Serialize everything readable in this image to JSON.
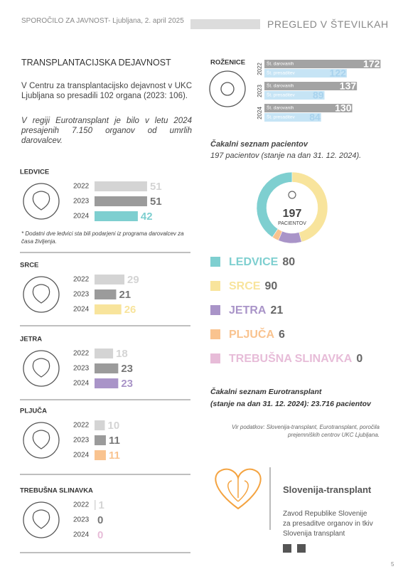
{
  "header": {
    "left": "SPOROČILO ZA JAVNOST- Ljubljana, 2. april 2025",
    "right": "PREGLED V ŠTEVILKAH"
  },
  "intro": {
    "title": "TRANSPLANTACIJSKA DEJAVNOST",
    "p1": "V Centru za transplantacijsko dejavnost v UKC Ljubljana so presadili 102 organa (2023: 106).",
    "p2": "V regiji Eurotransplant je bilo v letu 2024 presajenih 7.150 organov od umrlih darovalcev."
  },
  "organs": [
    {
      "name": "LEDVICE",
      "years": [
        "2022",
        "2023",
        "2024"
      ],
      "values": [
        51,
        51,
        42
      ],
      "colors": [
        "#d4d4d4",
        "#9b9b9b",
        "#7ecfd0"
      ],
      "note": "* Dodatni dve ledvici sta bili podarjeni iz programa darovalcev za časa življenja."
    },
    {
      "name": "SRCE",
      "years": [
        "2022",
        "2023",
        "2024"
      ],
      "values": [
        29,
        21,
        26
      ],
      "colors": [
        "#d4d4d4",
        "#9b9b9b",
        "#f8e49c"
      ]
    },
    {
      "name": "JETRA",
      "years": [
        "2022",
        "2023",
        "2024"
      ],
      "values": [
        18,
        23,
        23
      ],
      "colors": [
        "#d4d4d4",
        "#9b9b9b",
        "#a994c8"
      ]
    },
    {
      "name": "PLJUČA",
      "years": [
        "2022",
        "2023",
        "2024"
      ],
      "values": [
        10,
        11,
        11
      ],
      "colors": [
        "#d4d4d4",
        "#9b9b9b",
        "#f9c38f"
      ]
    },
    {
      "name": "TREBUŠNA SLINAVKA",
      "years": [
        "2022",
        "2023",
        "2024"
      ],
      "values": [
        1,
        0,
        0
      ],
      "colors": [
        "#d4d4d4",
        "#9b9b9b",
        "#e7bcd8"
      ]
    }
  ],
  "corneas": {
    "title": "ROŽENICE",
    "donated_label": "Št. darovanih",
    "transplanted_label": "Št. presaditev",
    "colors": [
      "#a3a3a3",
      "#c6e4f5"
    ],
    "rows": [
      {
        "year": "2022",
        "donated": 172,
        "transplanted": 122
      },
      {
        "year": "2023",
        "donated": 137,
        "transplanted": 89
      },
      {
        "year": "2024",
        "donated": 130,
        "transplanted": 84
      }
    ]
  },
  "waitlist": {
    "title": "Čakalni seznam pacientov",
    "subtitle": "197 pacientov (stanje na dan 31. 12. 2024).",
    "total": 197,
    "total_label": "PACIENTOV",
    "items": [
      {
        "name": "LEDVICE",
        "value": 80,
        "color": "#7ecfd0"
      },
      {
        "name": "SRCE",
        "value": 90,
        "color": "#f8e49c"
      },
      {
        "name": "JETRA",
        "value": 21,
        "color": "#a994c8"
      },
      {
        "name": "PLJUČA",
        "value": 6,
        "color": "#f9c38f"
      },
      {
        "name": "TREBUŠNA SLINAVKA",
        "value": 0,
        "color": "#e7bcd8"
      }
    ]
  },
  "eurotransplant": {
    "line1": "Čakalni seznam Eurotransplant",
    "line2": "(stanje na dan 31. 12. 2024): 23.716 pacientov"
  },
  "source": {
    "line1": "Vir podatkov: Slovenija-transplant, Eurotransplant, poročila",
    "line2": "prejemniških centrov UKC Ljubljana."
  },
  "footer": {
    "brand": "Slovenija-transplant",
    "desc": [
      "Zavod Republike Slovenije",
      "za presaditve organov in tkiv",
      "Slovenija transplant"
    ],
    "page": "5"
  }
}
